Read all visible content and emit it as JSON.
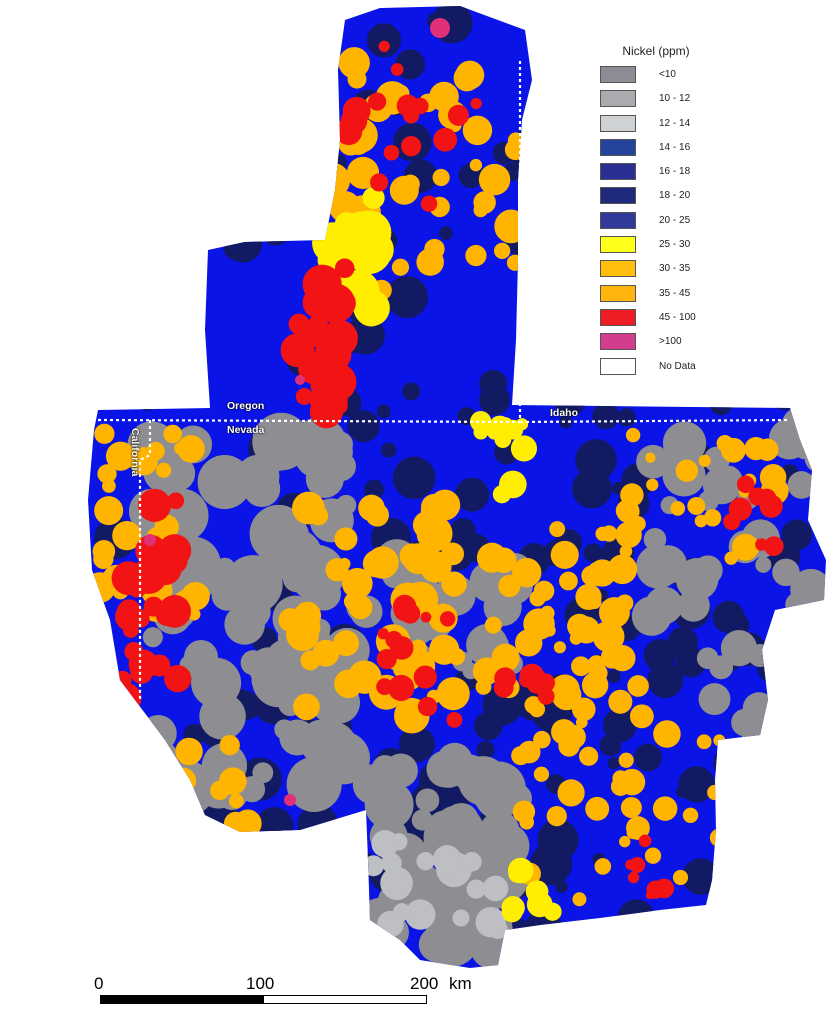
{
  "legend": {
    "title": "Nickel (ppm)",
    "classes": [
      {
        "label": "<10",
        "color": "#8c8c94"
      },
      {
        "label": "10 - 12",
        "color": "#a9abae"
      },
      {
        "label": "12 - 14",
        "color": "#cfd2d4"
      },
      {
        "label": "14 - 16",
        "color": "#24449c"
      },
      {
        "label": "16 - 18",
        "color": "#2b2f94"
      },
      {
        "label": "18 - 20",
        "color": "#1f2a7c"
      },
      {
        "label": "20 - 25",
        "color": "#313a98"
      },
      {
        "label": "25 - 30",
        "color": "#ffff1c"
      },
      {
        "label": "30 - 35",
        "color": "#ffbf0c"
      },
      {
        "label": "35 - 45",
        "color": "#ffb40e"
      },
      {
        "label": "45 - 100",
        "color": "#ee1c24"
      },
      {
        "label": ">100",
        "color": "#d23d8e"
      },
      {
        "label": "No Data",
        "color": "#ffffff"
      }
    ]
  },
  "state_labels": {
    "oregon": "Oregon",
    "nevada": "Nevada",
    "idaho": "Idaho",
    "california": "California"
  },
  "scale_bar": {
    "ticks": [
      "0",
      "100",
      "200"
    ],
    "unit": "km"
  },
  "map_colors": {
    "blue": "#0a14e6",
    "navy": "#121a64",
    "gray": "#8e8e92",
    "lightgray": "#bdbfc2",
    "yellow": "#ffee00",
    "orange": "#ffb400",
    "red": "#f21414",
    "pink": "#e0307a",
    "border": "#ffffff"
  }
}
